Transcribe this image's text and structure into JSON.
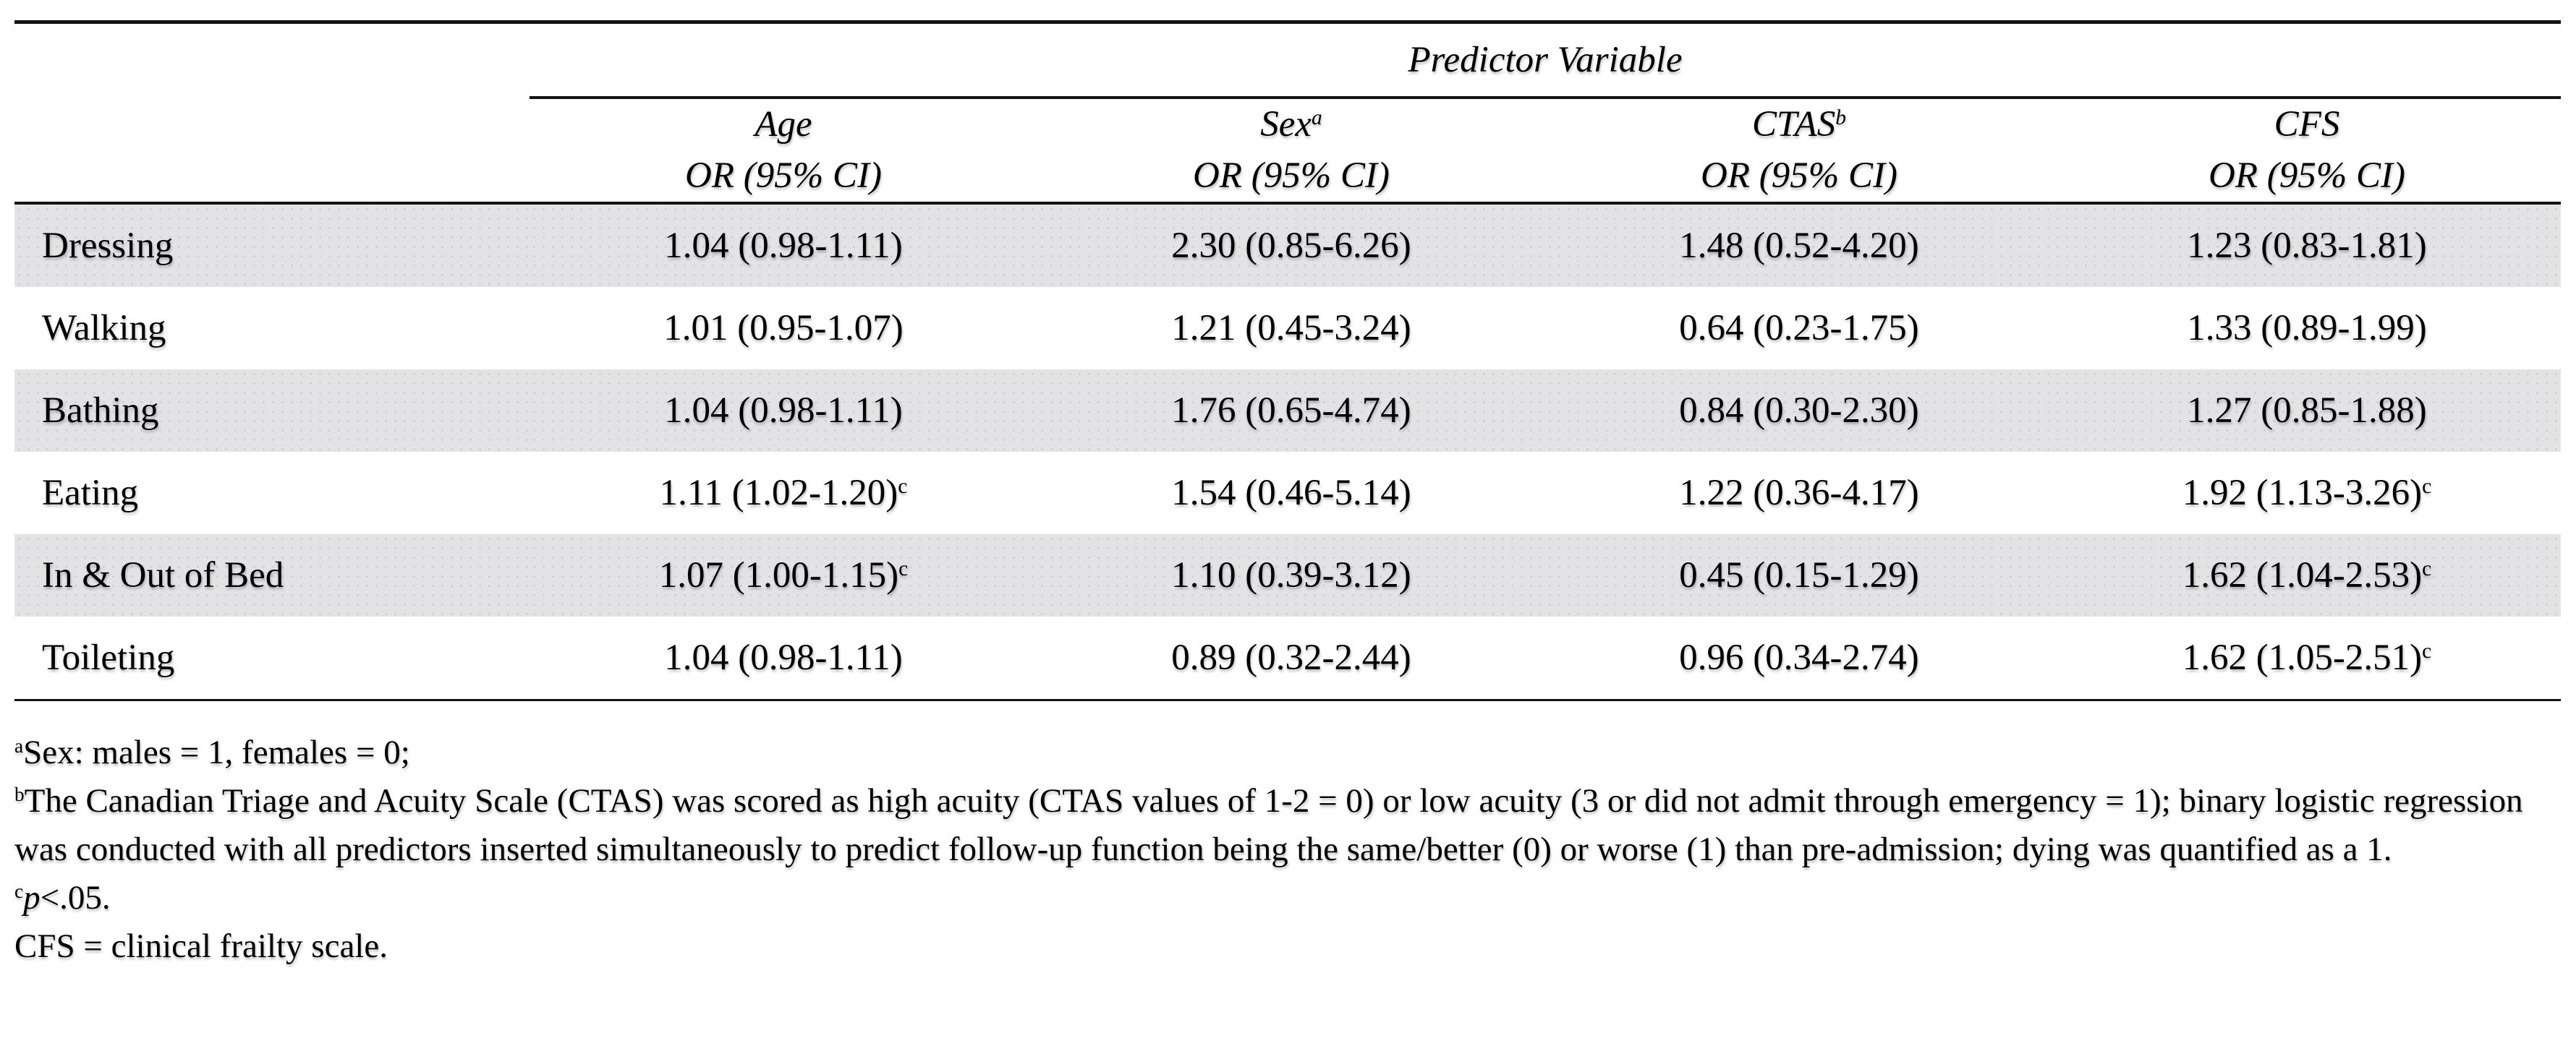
{
  "table": {
    "spanner": "Predictor Variable",
    "columns": [
      {
        "name": "Age",
        "sup": "",
        "or": "OR (95% CI)"
      },
      {
        "name": "Sex",
        "sup": "a",
        "or": "OR (95% CI)"
      },
      {
        "name": "CTAS",
        "sup": "b",
        "or": "OR (95% CI)"
      },
      {
        "name": "CFS",
        "sup": "",
        "or": "OR (95% CI)"
      }
    ],
    "rows": [
      {
        "label": "Dressing",
        "cells": [
          {
            "text": "1.04 (0.98-1.11)",
            "sup": ""
          },
          {
            "text": "2.30 (0.85-6.26)",
            "sup": ""
          },
          {
            "text": "1.48 (0.52-4.20)",
            "sup": ""
          },
          {
            "text": "1.23 (0.83-1.81)",
            "sup": ""
          }
        ]
      },
      {
        "label": "Walking",
        "cells": [
          {
            "text": "1.01 (0.95-1.07)",
            "sup": ""
          },
          {
            "text": "1.21 (0.45-3.24)",
            "sup": ""
          },
          {
            "text": "0.64 (0.23-1.75)",
            "sup": ""
          },
          {
            "text": "1.33 (0.89-1.99)",
            "sup": ""
          }
        ]
      },
      {
        "label": "Bathing",
        "cells": [
          {
            "text": "1.04 (0.98-1.11)",
            "sup": ""
          },
          {
            "text": "1.76 (0.65-4.74)",
            "sup": ""
          },
          {
            "text": "0.84 (0.30-2.30)",
            "sup": ""
          },
          {
            "text": "1.27 (0.85-1.88)",
            "sup": ""
          }
        ]
      },
      {
        "label": "Eating",
        "cells": [
          {
            "text": "1.11 (1.02-1.20)",
            "sup": "c"
          },
          {
            "text": "1.54 (0.46-5.14)",
            "sup": ""
          },
          {
            "text": "1.22 (0.36-4.17)",
            "sup": ""
          },
          {
            "text": "1.92 (1.13-3.26)",
            "sup": "c"
          }
        ]
      },
      {
        "label": "In & Out of Bed",
        "cells": [
          {
            "text": "1.07 (1.00-1.15)",
            "sup": "c"
          },
          {
            "text": "1.10 (0.39-3.12)",
            "sup": ""
          },
          {
            "text": "0.45 (0.15-1.29)",
            "sup": ""
          },
          {
            "text": "1.62 (1.04-2.53)",
            "sup": "c"
          }
        ]
      },
      {
        "label": "Toileting",
        "cells": [
          {
            "text": "1.04 (0.98-1.11)",
            "sup": ""
          },
          {
            "text": "0.89 (0.32-2.44)",
            "sup": ""
          },
          {
            "text": "0.96 (0.34-2.74)",
            "sup": ""
          },
          {
            "text": "1.62 (1.05-2.51)",
            "sup": "c"
          }
        ]
      }
    ]
  },
  "footnotes": {
    "a": {
      "marker": "a",
      "text": "Sex: males = 1, females = 0;"
    },
    "b": {
      "marker": "b",
      "text": "The Canadian Triage and Acuity Scale (CTAS) was scored as high acuity (CTAS values of 1-2 = 0) or low acuity (3 or did not admit through emergency = 1); binary logistic regression was conducted with all predictors inserted simultaneously to predict follow-up function being the same/better (0) or worse (1) than pre-admission; dying was quantified as a 1."
    },
    "c": {
      "marker": "c",
      "p": "p",
      "text": "<.05."
    },
    "cfs": {
      "text": "CFS = clinical frailty scale."
    }
  },
  "colors": {
    "stripe": "#e3e3e5",
    "rule": "#131313"
  }
}
